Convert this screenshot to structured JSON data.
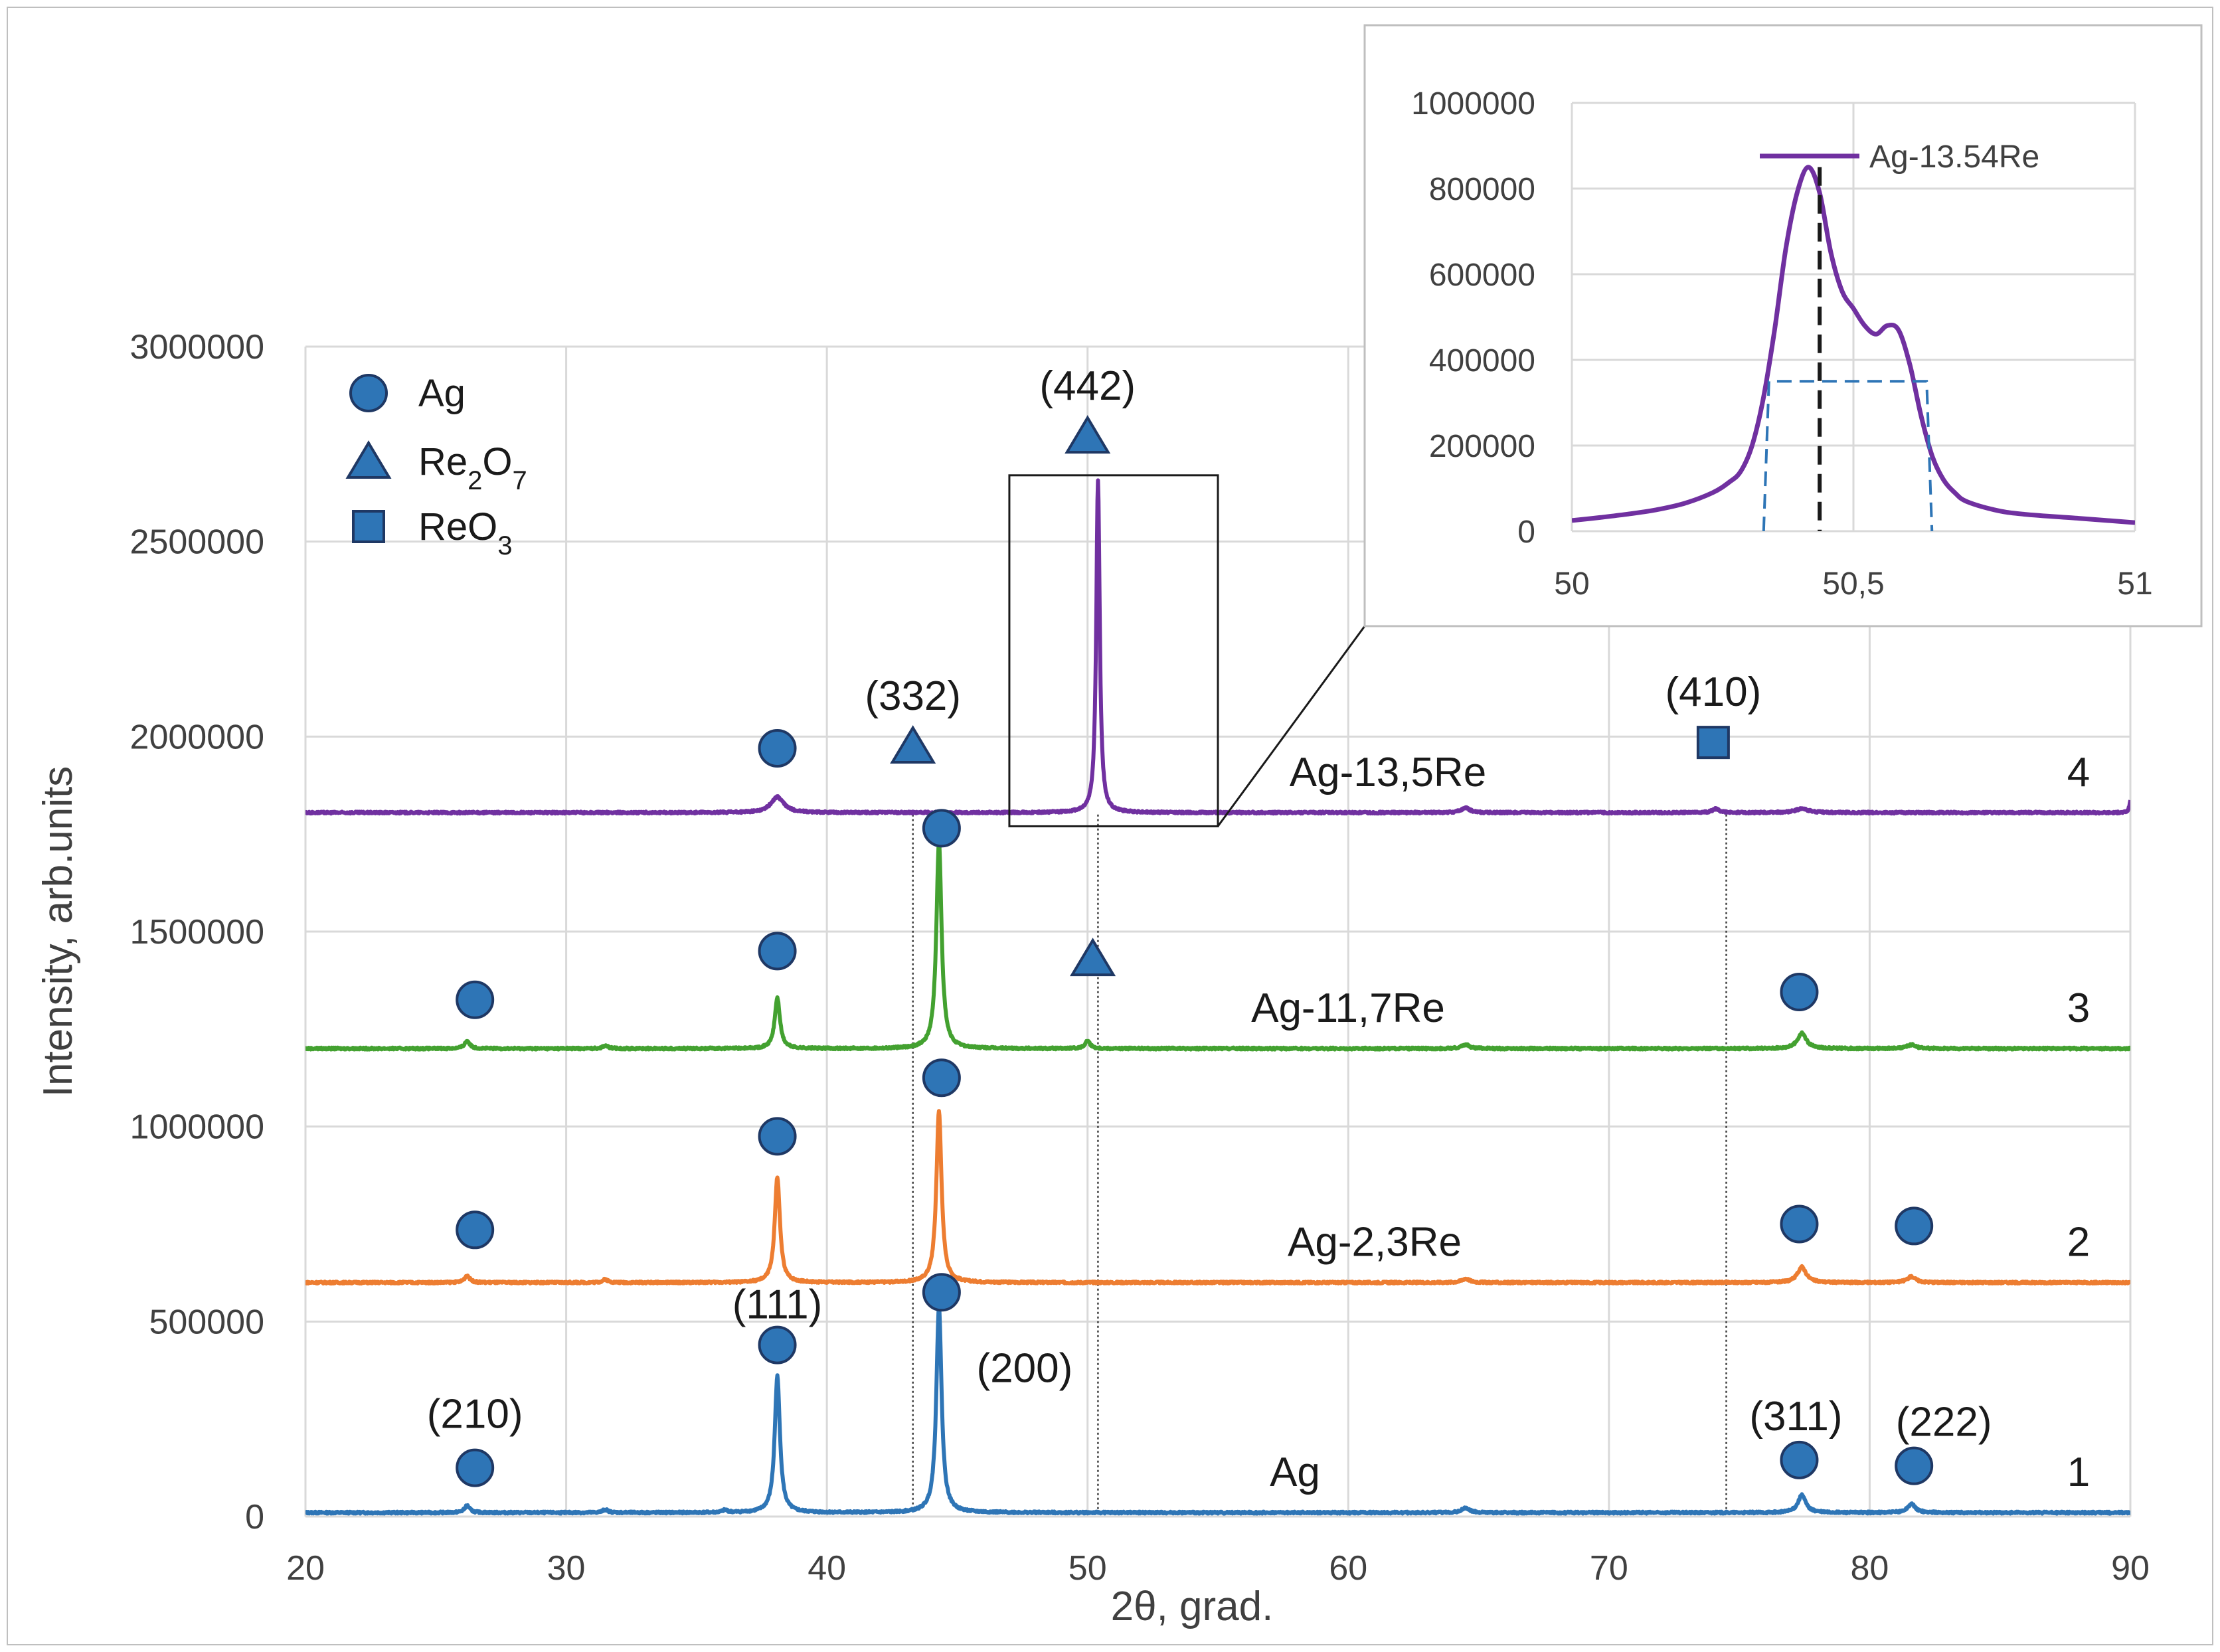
{
  "chart_data": [
    {
      "type": "line",
      "xlabel": "2θ, grad.",
      "ylabel": "Intensity, arb.units",
      "xlim": [
        20,
        90
      ],
      "ylim": [
        0,
        3000000
      ],
      "x_ticks": [
        "20",
        "30",
        "40",
        "50",
        "60",
        "70",
        "80",
        "90"
      ],
      "y_ticks": [
        "0",
        "500000",
        "1000000",
        "1500000",
        "2000000",
        "2500000",
        "3000000"
      ],
      "grid": true,
      "legend": {
        "placement": "top-left",
        "items": [
          {
            "label": "Ag",
            "sub": "",
            "label2": "",
            "sub2": "",
            "marker": "circle"
          },
          {
            "label": "Re",
            "sub": "2",
            "label2": "O",
            "sub2": "7",
            "marker": "triangle"
          },
          {
            "label": "ReO",
            "sub": "3",
            "label2": "",
            "sub2": "",
            "marker": "square"
          }
        ]
      },
      "series": [
        {
          "curve_no": "1",
          "sample": "Ag",
          "color": "#2e75b6",
          "baseline": 10000,
          "peaks": [
            [
              26.2,
              18000,
              0.12
            ],
            [
              31.5,
              8000,
              0.12
            ],
            [
              36.1,
              6000,
              0.12
            ],
            [
              38.1,
              350000,
              0.12
            ],
            [
              44.3,
              530000,
              0.12
            ],
            [
              64.5,
              12000,
              0.18
            ],
            [
              77.4,
              45000,
              0.18
            ],
            [
              81.6,
              22000,
              0.18
            ]
          ]
        },
        {
          "curve_no": "2",
          "sample": "Ag-2,3Re",
          "color": "#ed7d31",
          "baseline": 600000,
          "peaks": [
            [
              26.2,
              18000,
              0.12
            ],
            [
              31.5,
              8000,
              0.12
            ],
            [
              38.1,
              270000,
              0.12
            ],
            [
              44.3,
              440000,
              0.12
            ],
            [
              64.5,
              10000,
              0.18
            ],
            [
              77.4,
              40000,
              0.2
            ],
            [
              81.6,
              15000,
              0.2
            ]
          ]
        },
        {
          "curve_no": "3",
          "sample": "Ag-11,7Re",
          "color": "#43a130",
          "baseline": 1200000,
          "peaks": [
            [
              26.2,
              20000,
              0.12
            ],
            [
              31.5,
              8000,
              0.12
            ],
            [
              38.1,
              130000,
              0.12
            ],
            [
              44.3,
              530000,
              0.12
            ],
            [
              50.0,
              20000,
              0.12
            ],
            [
              64.5,
              10000,
              0.18
            ],
            [
              77.4,
              40000,
              0.2
            ],
            [
              81.6,
              10000,
              0.2
            ]
          ]
        },
        {
          "curve_no": "4",
          "sample": "Ag-13,5Re",
          "color": "#7030a0",
          "baseline": 1805000,
          "peaks": [
            [
              38.1,
              40000,
              0.3
            ],
            [
              50.4,
              850000,
              0.08
            ],
            [
              64.5,
              12000,
              0.2
            ],
            [
              74.1,
              10000,
              0.15
            ],
            [
              77.4,
              10000,
              0.3
            ],
            [
              90.0,
              30000,
              0.05
            ]
          ]
        }
      ],
      "phase_markers": [
        {
          "phase": "Ag",
          "marker": "circle",
          "x": 26.5,
          "y": 125000,
          "hkl": "(210)"
        },
        {
          "phase": "Ag",
          "marker": "circle",
          "x": 38.1,
          "y": 440000,
          "hkl": "(111)"
        },
        {
          "phase": "Ag",
          "marker": "circle",
          "x": 44.4,
          "y": 575000,
          "hkl": "(200)"
        },
        {
          "phase": "Ag",
          "marker": "circle",
          "x": 77.3,
          "y": 145000,
          "hkl": "(311)"
        },
        {
          "phase": "Ag",
          "marker": "circle",
          "x": 81.7,
          "y": 130000,
          "hkl": "(222)"
        },
        {
          "phase": "Ag",
          "marker": "circle",
          "x": 26.5,
          "y": 735000,
          "hkl": ""
        },
        {
          "phase": "Ag",
          "marker": "circle",
          "x": 38.1,
          "y": 975000,
          "hkl": ""
        },
        {
          "phase": "Ag",
          "marker": "circle",
          "x": 44.4,
          "y": 1125000,
          "hkl": ""
        },
        {
          "phase": "Ag",
          "marker": "circle",
          "x": 77.3,
          "y": 750000,
          "hkl": ""
        },
        {
          "phase": "Ag",
          "marker": "circle",
          "x": 81.7,
          "y": 745000,
          "hkl": ""
        },
        {
          "phase": "Ag",
          "marker": "circle",
          "x": 26.5,
          "y": 1325000,
          "hkl": ""
        },
        {
          "phase": "Ag",
          "marker": "circle",
          "x": 38.1,
          "y": 1450000,
          "hkl": ""
        },
        {
          "phase": "Ag",
          "marker": "circle",
          "x": 44.4,
          "y": 1765000,
          "hkl": ""
        },
        {
          "phase": "Ag",
          "marker": "circle",
          "x": 77.3,
          "y": 1345000,
          "hkl": ""
        },
        {
          "phase": "Ag",
          "marker": "circle",
          "x": 38.1,
          "y": 1970000,
          "hkl": ""
        },
        {
          "phase": "Re2O7",
          "marker": "triangle",
          "x": 43.3,
          "y": 1975000,
          "hkl": "(332)"
        },
        {
          "phase": "Re2O7",
          "marker": "triangle",
          "x": 50.0,
          "y": 2770000,
          "hkl": "(442)"
        },
        {
          "phase": "Re2O7",
          "marker": "triangle",
          "x": 50.2,
          "y": 1430000,
          "hkl": ""
        },
        {
          "phase": "ReO3",
          "marker": "square",
          "x": 74.0,
          "y": 1985000,
          "hkl": "(410)"
        }
      ],
      "reference_lines": [
        43.3,
        50.4,
        74.5
      ],
      "zoom_box": {
        "x": [
          47.0,
          55.0
        ],
        "y": [
          1770000,
          2670000
        ]
      }
    },
    {
      "type": "line",
      "series_name": "Ag-13.54Re",
      "color": "#7030a0",
      "xlim": [
        50,
        51
      ],
      "ylim": [
        0,
        1000000
      ],
      "x_ticks": [
        "50",
        "50,5",
        "51"
      ],
      "y_ticks": [
        "0",
        "200000",
        "400000",
        "600000",
        "800000",
        "1000000"
      ],
      "grid": true,
      "legend_placement": "top",
      "x": [
        50.0,
        50.05,
        50.1,
        50.15,
        50.2,
        50.25,
        50.28,
        50.3,
        50.32,
        50.34,
        50.36,
        50.38,
        50.4,
        50.42,
        50.44,
        50.46,
        50.48,
        50.5,
        50.52,
        50.54,
        50.56,
        50.58,
        50.6,
        50.62,
        50.64,
        50.66,
        50.68,
        50.7,
        50.75,
        50.8,
        50.9,
        51.0
      ],
      "y": [
        25000,
        32000,
        40000,
        50000,
        65000,
        90000,
        115000,
        140000,
        200000,
        310000,
        470000,
        660000,
        790000,
        850000,
        790000,
        650000,
        560000,
        520000,
        480000,
        460000,
        480000,
        470000,
        390000,
        270000,
        175000,
        120000,
        90000,
        70000,
        50000,
        40000,
        30000,
        20000
      ],
      "peak_marker_x": 50.44,
      "fwhm": {
        "x": [
          50.35,
          50.63
        ],
        "y": 350000
      }
    }
  ]
}
